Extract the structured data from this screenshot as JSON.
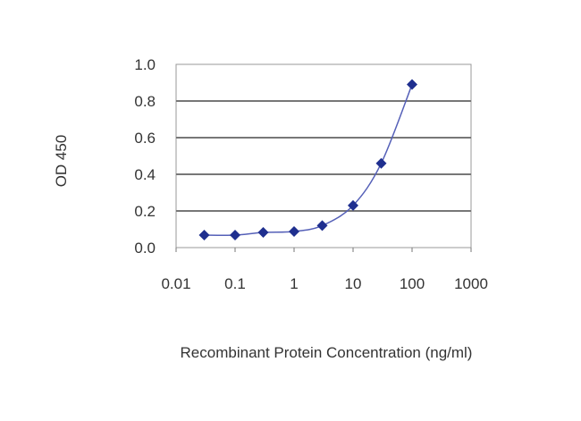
{
  "chart_data": {
    "type": "line",
    "title": "",
    "xlabel": "Recombinant Protein Concentration (ng/ml)",
    "ylabel": "OD 450",
    "x_scale": "log",
    "xlim": [
      0.01,
      1000
    ],
    "ylim": [
      0.0,
      1.0
    ],
    "x_ticks": [
      "0.01",
      "0.1",
      "1",
      "10",
      "100",
      "1000"
    ],
    "y_ticks": [
      "0.0",
      "0.2",
      "0.4",
      "0.6",
      "0.8",
      "1.0"
    ],
    "grid": "horizontal",
    "series": [
      {
        "color": "#1f2f8f",
        "marker": "diamond",
        "x": [
          0.03,
          0.1,
          0.3,
          1,
          3,
          10,
          30,
          100
        ],
        "y": [
          0.068,
          0.068,
          0.083,
          0.088,
          0.12,
          0.23,
          0.46,
          0.89
        ]
      }
    ]
  }
}
